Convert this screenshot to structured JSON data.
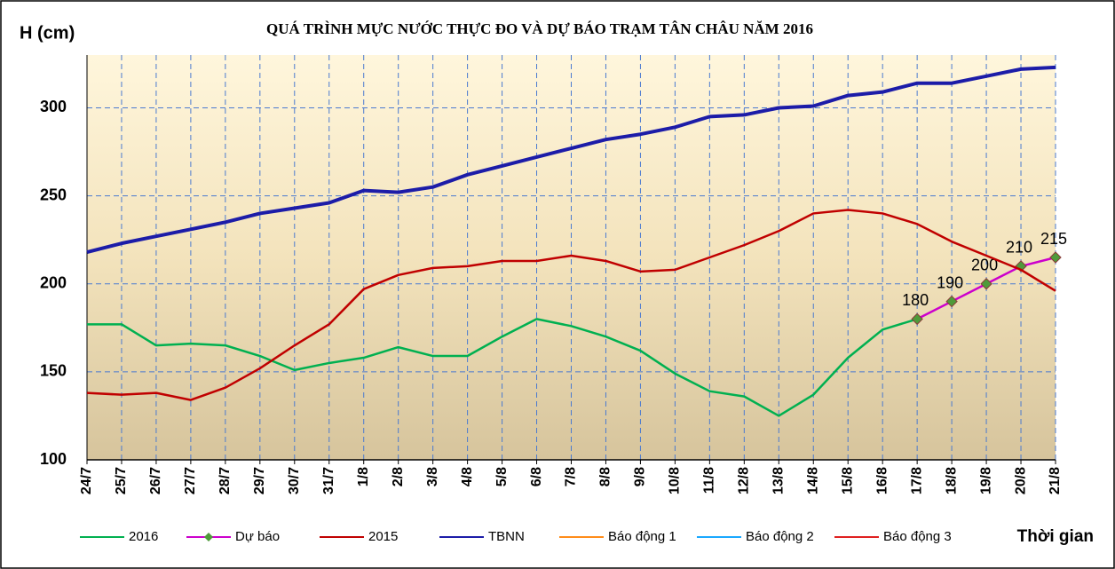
{
  "chart_data": {
    "type": "line",
    "title": "QUÁ TRÌNH MỰC NƯỚC THỰC ĐO VÀ DỰ BÁO TRẠM TÂN CHÂU NĂM 2016",
    "y_label": "H (cm)",
    "x_label": "Thời gian",
    "categories": [
      "24/7",
      "25/7",
      "26/7",
      "27/7",
      "28/7",
      "29/7",
      "30/7",
      "31/7",
      "1/8",
      "2/8",
      "3/8",
      "4/8",
      "5/8",
      "6/8",
      "7/8",
      "8/8",
      "9/8",
      "10/8",
      "11/8",
      "12/8",
      "13/8",
      "14/8",
      "15/8",
      "16/8",
      "17/8",
      "18/8",
      "19/8",
      "20/8",
      "21/8"
    ],
    "ylim": [
      100,
      330
    ],
    "yticks": [
      100,
      150,
      200,
      250,
      300
    ],
    "grid": true,
    "series": [
      {
        "name": "2016",
        "color": "#00b050",
        "values": [
          177,
          177,
          165,
          166,
          165,
          159,
          151,
          155,
          158,
          164,
          159,
          159,
          170,
          180,
          176,
          170,
          162,
          149,
          139,
          136,
          125,
          137,
          158,
          174,
          180,
          null,
          null,
          null,
          null
        ]
      },
      {
        "name": "Dự báo",
        "color": "#cc00cc",
        "marker": "diamond",
        "data_labels": true,
        "values": [
          null,
          null,
          null,
          null,
          null,
          null,
          null,
          null,
          null,
          null,
          null,
          null,
          null,
          null,
          null,
          null,
          null,
          null,
          null,
          null,
          null,
          null,
          null,
          null,
          180,
          190,
          200,
          210,
          215
        ]
      },
      {
        "name": "2015",
        "color": "#c00000",
        "values": [
          138,
          137,
          138,
          134,
          141,
          152,
          165,
          177,
          197,
          205,
          209,
          210,
          213,
          213,
          216,
          213,
          207,
          208,
          215,
          222,
          230,
          240,
          242,
          240,
          234,
          224,
          216,
          208,
          196
        ]
      },
      {
        "name": "TBNN",
        "color": "#1c1ca8",
        "width": 4,
        "values": [
          218,
          223,
          227,
          231,
          235,
          240,
          243,
          246,
          253,
          252,
          255,
          262,
          267,
          272,
          277,
          282,
          285,
          289,
          295,
          296,
          300,
          301,
          307,
          309,
          314,
          314,
          318,
          322,
          323
        ]
      },
      {
        "name": "Báo động 1",
        "color": "#ff8c1a",
        "values": [
          null,
          null,
          null,
          null,
          null,
          null,
          null,
          null,
          null,
          null,
          null,
          null,
          null,
          null,
          null,
          null,
          null,
          null,
          null,
          null,
          null,
          null,
          null,
          null,
          null,
          null,
          null,
          null,
          null
        ]
      },
      {
        "name": "Báo động 2",
        "color": "#1aa8ff",
        "values": [
          null,
          null,
          null,
          null,
          null,
          null,
          null,
          null,
          null,
          null,
          null,
          null,
          null,
          null,
          null,
          null,
          null,
          null,
          null,
          null,
          null,
          null,
          null,
          null,
          null,
          null,
          null,
          null,
          null
        ]
      },
      {
        "name": "Báo động 3",
        "color": "#e02020",
        "values": [
          null,
          null,
          null,
          null,
          null,
          null,
          null,
          null,
          null,
          null,
          null,
          null,
          null,
          null,
          null,
          null,
          null,
          null,
          null,
          null,
          null,
          null,
          null,
          null,
          null,
          null,
          null,
          null,
          null
        ]
      }
    ]
  }
}
